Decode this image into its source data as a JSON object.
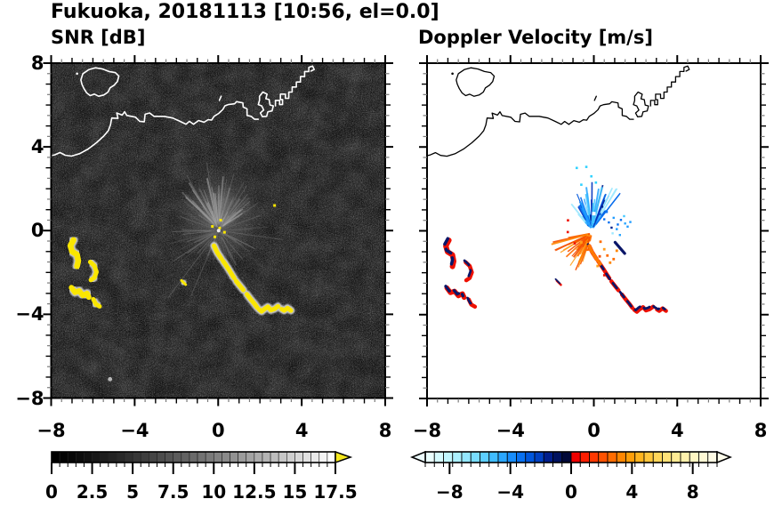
{
  "title": "Fukuoka, 20181113 [10:56, el=0.0]",
  "panels": {
    "left": {
      "subtitle": "SNR [dB]"
    },
    "right": {
      "subtitle": "Doppler Velocity [m/s]"
    }
  },
  "chart_data": [
    {
      "type": "heatmap",
      "title": "SNR [dB]",
      "xlabel": "",
      "ylabel": "",
      "xlim": [
        -8,
        8
      ],
      "ylim": [
        -8,
        8
      ],
      "xticks": [
        -8,
        -4,
        0,
        4,
        8
      ],
      "yticks": [
        8,
        4,
        0,
        -4,
        -8
      ],
      "minor_tick_step": 0.5,
      "background": "#000000",
      "coast_color": "#ffffff",
      "colorbar": {
        "orientation": "horizontal",
        "range": [
          0,
          17.5
        ],
        "segment_step": 0.5,
        "tick_labels": [
          0,
          2.5,
          5,
          7.5,
          10,
          12.5,
          15,
          17.5
        ],
        "colormap": "grayscale-black-to-white",
        "over_arrow_color": "#F5E81E"
      },
      "features": {
        "yellow": "#FAE600",
        "fringe": "#E2E2E2",
        "rays_base": {
          "seed": 7,
          "count": 95,
          "angle": [
            0,
            360
          ],
          "len": [
            8,
            58
          ],
          "gray": [
            60,
            150
          ],
          "op": [
            0.15,
            0.5
          ],
          "width": [
            0.7,
            1.4
          ],
          "origin": [
            0,
            0
          ]
        },
        "rays_fan": {
          "seed": 3,
          "count": 60,
          "angle": [
            30,
            150
          ],
          "len": [
            14,
            62
          ],
          "gray": [
            120,
            200
          ],
          "op": [
            0.2,
            0.5
          ],
          "width": [
            0.8,
            2.0
          ],
          "origin": [
            0,
            0.1
          ]
        },
        "rays_long": [
          [
            233,
            95
          ],
          [
            214,
            62
          ],
          [
            247,
            80
          ],
          [
            120,
            72
          ],
          [
            75,
            66
          ],
          [
            100,
            78
          ],
          [
            58,
            60
          ],
          [
            160,
            46
          ],
          [
            352,
            72
          ],
          [
            310,
            42
          ],
          [
            20,
            50
          ]
        ],
        "yellow_specks": [
          [
            0.05,
            0.12
          ],
          [
            0.28,
            -0.08
          ],
          [
            -0.18,
            -0.3
          ],
          [
            0.1,
            0.5
          ],
          [
            2.68,
            1.2
          ],
          [
            -0.3,
            0.2
          ]
        ],
        "gray_dot": [
          -5.2,
          -7.1
        ]
      }
    },
    {
      "type": "heatmap",
      "title": "Doppler Velocity [m/s]",
      "xlabel": "",
      "ylabel": "",
      "xlim": [
        -8,
        8
      ],
      "ylim": [
        -8,
        8
      ],
      "xticks": [
        -8,
        -4,
        0,
        4,
        8
      ],
      "yticks": [
        8,
        4,
        0,
        -4,
        -8
      ],
      "minor_tick_step": 0.5,
      "background": "#ffffff",
      "coast_color": "#000000",
      "colorbar": {
        "orientation": "horizontal",
        "range": [
          -9.6,
          9.6
        ],
        "segment_step": 0.6,
        "tick_labels": [
          -8,
          -4,
          0,
          4,
          8
        ],
        "colormap": "diverging-cyan-navy-red-cream",
        "under_arrow_color": "#EDFDFF",
        "over_arrow_color": "#FFFDEC",
        "segment_colors": [
          "#EAFFFF",
          "#D5FBFF",
          "#C0F6FF",
          "#ABF0FF",
          "#93E7FF",
          "#78DCFF",
          "#5CCEFF",
          "#40BCFF",
          "#2AA6FF",
          "#178CFB",
          "#0870F0",
          "#0056DC",
          "#0040C2",
          "#001E8C",
          "#00125F",
          "#000838",
          "#EE0000",
          "#FF1E00",
          "#FF3800",
          "#FF5200",
          "#FF6C00",
          "#FF8600",
          "#FF9E08",
          "#FFB41E",
          "#FFC63C",
          "#FFD65A",
          "#FFE278",
          "#FFEB94",
          "#FFF1AC",
          "#FFF6C2",
          "#FFF9D4",
          "#FFFBE4"
        ]
      },
      "features": {
        "red": "#EE1000",
        "navy": "#0A1668",
        "blue_fan": {
          "seed": 5,
          "count": 75,
          "angle": [
            48,
            132
          ],
          "len": [
            6,
            55
          ],
          "width": [
            1.1,
            2.2
          ],
          "origin": [
            -0.1,
            0.05
          ],
          "colors": [
            "#9BE8FF",
            "#45C8FF",
            "#1E9BFF",
            "#0870F0",
            "#0056DC",
            "#0032BE",
            "#001E8C",
            "#2AA6FF"
          ]
        },
        "orange_fan": {
          "seed": 9,
          "count": 48,
          "angle": [
            188,
            258
          ],
          "len": [
            5,
            48
          ],
          "width": [
            1.1,
            2.0
          ],
          "origin": [
            -0.1,
            -0.12
          ],
          "colors": [
            "#FF6C00",
            "#FF8600",
            "#FFA01E",
            "#F55000"
          ]
        },
        "blue_dots": [
          [
            0.5,
            0.55
          ],
          [
            0.72,
            0.4
          ],
          [
            0.95,
            0.62
          ],
          [
            1.15,
            0.3
          ],
          [
            1.3,
            0.52
          ],
          [
            1.5,
            0.35
          ],
          [
            0.85,
            0.15
          ],
          [
            1.1,
            0.08
          ],
          [
            0.62,
            0.9
          ],
          [
            0.4,
            1.15
          ],
          [
            1.45,
            0.7
          ],
          [
            1.62,
            0.2
          ],
          [
            0.3,
            0.8
          ],
          [
            1.75,
            0.42
          ],
          [
            0.9,
            -0.12
          ],
          [
            1.25,
            -0.2
          ]
        ],
        "cyan_specks": [
          [
            -0.82,
            3.0
          ],
          [
            -0.36,
            3.05
          ],
          [
            -0.12,
            2.6
          ],
          [
            -0.6,
            2.2
          ],
          [
            0.1,
            2.3
          ]
        ],
        "orange_dots": [
          [
            0.32,
            -0.52
          ],
          [
            0.5,
            -0.88
          ],
          [
            0.28,
            -1.22
          ],
          [
            0.65,
            -1.18
          ],
          [
            0.78,
            -1.52
          ],
          [
            0.95,
            -1.35
          ],
          [
            0.18,
            -1.68
          ],
          [
            1.1,
            -0.95
          ],
          [
            -0.3,
            -0.9
          ],
          [
            -0.6,
            -0.55
          ]
        ],
        "red_specks": [
          [
            -1.25,
            -0.06
          ],
          [
            -0.92,
            -0.6
          ],
          [
            0.5,
            -2.12
          ],
          [
            -1.24,
            0.5
          ]
        ],
        "navy_streak": [
          [
            1.02,
            -0.55
          ],
          [
            1.48,
            -1.08
          ]
        ],
        "gap_square": [
          0,
          0.82
        ]
      }
    }
  ],
  "geo": {
    "coast": {
      "island": [
        [
          -6.6,
          7.2
        ],
        [
          -6.5,
          7.5
        ],
        [
          -6.2,
          7.7
        ],
        [
          -5.9,
          7.78
        ],
        [
          -5.55,
          7.72
        ],
        [
          -5.25,
          7.6
        ],
        [
          -4.95,
          7.55
        ],
        [
          -4.78,
          7.38
        ],
        [
          -4.85,
          7.12
        ],
        [
          -5.0,
          6.95
        ],
        [
          -5.2,
          6.82
        ],
        [
          -5.3,
          6.62
        ],
        [
          -5.5,
          6.48
        ],
        [
          -5.75,
          6.42
        ],
        [
          -5.95,
          6.52
        ],
        [
          -6.15,
          6.45
        ],
        [
          -6.32,
          6.58
        ],
        [
          -6.45,
          6.78
        ],
        [
          -6.55,
          7.0
        ]
      ],
      "islet": [
        -6.78,
        7.5
      ],
      "rock": [
        [
          0.03,
          6.22
        ],
        [
          0.12,
          6.42
        ]
      ],
      "main": [
        [
          -8.2,
          3.55
        ],
        [
          -7.85,
          3.62
        ],
        [
          -7.6,
          3.73
        ],
        [
          -7.35,
          3.6
        ],
        [
          -7.05,
          3.56
        ],
        [
          -6.65,
          3.68
        ],
        [
          -6.25,
          3.9
        ],
        [
          -5.85,
          4.2
        ],
        [
          -5.5,
          4.52
        ],
        [
          -5.28,
          4.78
        ],
        [
          -5.18,
          5.05
        ],
        [
          -5.12,
          5.38
        ],
        [
          -4.82,
          5.36
        ],
        [
          -4.88,
          5.62
        ],
        [
          -4.62,
          5.52
        ],
        [
          -4.5,
          5.68
        ],
        [
          -4.4,
          5.5
        ],
        [
          -3.98,
          5.42
        ],
        [
          -3.78,
          5.22
        ],
        [
          -3.56,
          5.2
        ],
        [
          -3.52,
          5.56
        ],
        [
          -3.3,
          5.62
        ],
        [
          -3.1,
          5.46
        ],
        [
          -2.62,
          5.46
        ],
        [
          -2.2,
          5.38
        ],
        [
          -1.85,
          5.22
        ],
        [
          -1.56,
          5.08
        ],
        [
          -1.4,
          5.22
        ],
        [
          -1.2,
          5.08
        ],
        [
          -0.96,
          5.26
        ],
        [
          -0.7,
          5.18
        ],
        [
          -0.5,
          5.3
        ],
        [
          -0.34,
          5.28
        ],
        [
          -0.22,
          5.46
        ],
        [
          0.0,
          5.6
        ],
        [
          0.2,
          5.78
        ],
        [
          0.3,
          5.96
        ],
        [
          0.46,
          6.02
        ],
        [
          0.76,
          6.06
        ],
        [
          0.86,
          6.16
        ],
        [
          1.16,
          6.1
        ],
        [
          1.18,
          5.9
        ],
        [
          1.36,
          5.82
        ],
        [
          1.36,
          5.5
        ],
        [
          1.56,
          5.46
        ],
        [
          1.72,
          5.32
        ],
        [
          1.9,
          5.32
        ]
      ],
      "harbor": [
        [
          1.96,
          6.42
        ],
        [
          2.12,
          6.62
        ],
        [
          2.32,
          6.52
        ],
        [
          2.26,
          6.3
        ],
        [
          2.42,
          6.26
        ],
        [
          2.46,
          6.0
        ],
        [
          2.62,
          5.96
        ],
        [
          2.56,
          5.72
        ],
        [
          2.36,
          5.68
        ],
        [
          2.3,
          5.46
        ],
        [
          2.1,
          5.44
        ],
        [
          2.0,
          5.62
        ],
        [
          2.16,
          5.76
        ],
        [
          2.06,
          5.96
        ],
        [
          1.9,
          6.02
        ],
        [
          1.96,
          6.22
        ]
      ],
      "piers": [
        [
          2.72,
          5.96
        ],
        [
          2.72,
          6.22
        ],
        [
          2.92,
          6.22
        ],
        [
          2.92,
          6.02
        ],
        [
          3.06,
          6.02
        ],
        [
          3.06,
          6.26
        ],
        [
          2.96,
          6.26
        ],
        [
          2.96,
          6.52
        ],
        [
          3.2,
          6.52
        ],
        [
          3.2,
          6.32
        ],
        [
          3.36,
          6.32
        ],
        [
          3.36,
          6.62
        ],
        [
          3.52,
          6.62
        ],
        [
          3.52,
          6.86
        ],
        [
          3.72,
          6.86
        ],
        [
          3.72,
          7.1
        ],
        [
          3.92,
          7.1
        ],
        [
          3.92,
          7.36
        ],
        [
          4.12,
          7.36
        ],
        [
          4.12,
          7.6
        ],
        [
          4.32,
          7.6
        ],
        [
          4.32,
          7.8
        ],
        [
          4.5,
          7.86
        ],
        [
          4.58,
          7.7
        ],
        [
          4.42,
          7.62
        ]
      ]
    },
    "blobs": [
      {
        "id": "west-1",
        "pts": [
          [
            -6.95,
            -0.45
          ],
          [
            -7.1,
            -0.72
          ],
          [
            -7.02,
            -1.0
          ],
          [
            -6.78,
            -1.15
          ],
          [
            -6.72,
            -1.45
          ],
          [
            -6.78,
            -1.7
          ]
        ],
        "w": 6.5
      },
      {
        "id": "west-2",
        "pts": [
          [
            -6.15,
            -1.5
          ],
          [
            -5.95,
            -1.68
          ],
          [
            -5.85,
            -1.98
          ],
          [
            -5.95,
            -2.25
          ],
          [
            -6.12,
            -2.36
          ]
        ],
        "w": 5
      },
      {
        "id": "west-3",
        "pts": [
          [
            -7.05,
            -2.72
          ],
          [
            -6.88,
            -2.95
          ],
          [
            -6.68,
            -2.88
          ],
          [
            -6.5,
            -3.1
          ],
          [
            -6.3,
            -3.0
          ],
          [
            -6.22,
            -3.18
          ]
        ],
        "w": 6
      },
      {
        "id": "west-4",
        "pts": [
          [
            -6.0,
            -3.28
          ],
          [
            -5.88,
            -3.52
          ],
          [
            -5.7,
            -3.62
          ]
        ],
        "w": 5
      },
      {
        "id": "mid-dash",
        "pts": [
          [
            -1.78,
            -2.38
          ],
          [
            -1.58,
            -2.58
          ]
        ],
        "w": 3
      },
      {
        "id": "chain",
        "pts": [
          [
            -0.22,
            -0.72
          ],
          [
            -0.08,
            -1.02
          ],
          [
            0.1,
            -1.3
          ],
          [
            0.3,
            -1.58
          ],
          [
            0.5,
            -1.88
          ],
          [
            0.66,
            -2.14
          ],
          [
            0.86,
            -2.44
          ],
          [
            1.1,
            -2.74
          ],
          [
            1.32,
            -3.0
          ],
          [
            1.52,
            -3.26
          ],
          [
            1.72,
            -3.5
          ],
          [
            1.88,
            -3.72
          ],
          [
            2.06,
            -3.86
          ],
          [
            2.2,
            -3.74
          ],
          [
            2.36,
            -3.64
          ],
          [
            2.5,
            -3.8
          ],
          [
            2.68,
            -3.74
          ],
          [
            2.84,
            -3.62
          ],
          [
            3.0,
            -3.74
          ],
          [
            3.14,
            -3.82
          ],
          [
            3.3,
            -3.7
          ],
          [
            3.46,
            -3.82
          ]
        ],
        "w": 5,
        "dash": "17 3 23 4 13 6 19 3 27 5 15 4"
      }
    ]
  }
}
